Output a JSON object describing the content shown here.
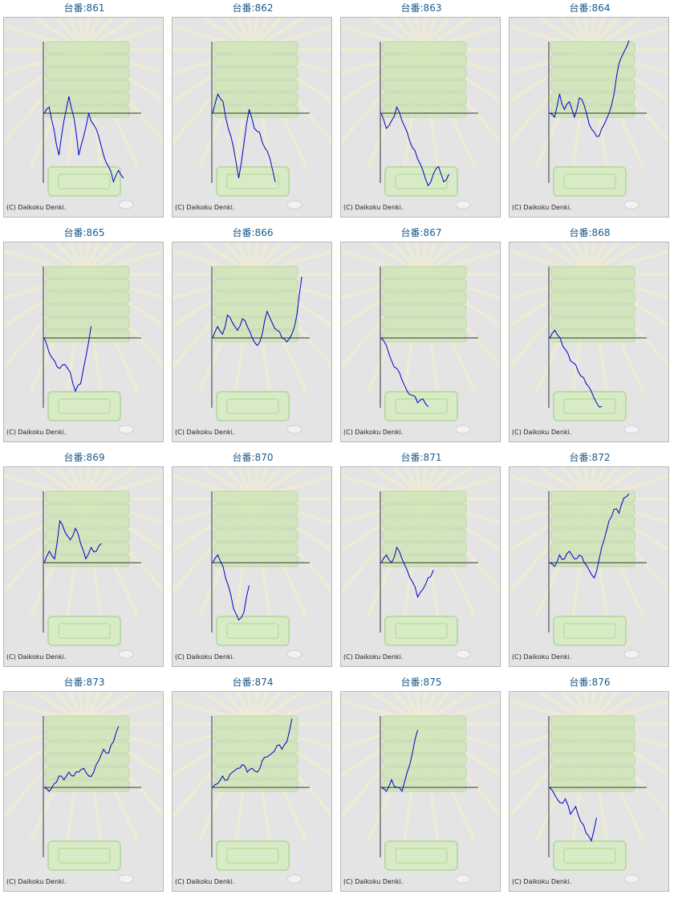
{
  "copyright": "(C) Daikoku Denki.",
  "colors": {
    "title": "#1a5a8a",
    "line": "#0000cc",
    "axis": "#333333",
    "panel_bg": "#e4e4e4"
  },
  "machines": [
    {
      "label": "台番:861",
      "chart_data": {
        "type": "line",
        "values": [
          0,
          8,
          -22,
          -55,
          -10,
          22,
          -5,
          -55,
          -30,
          0,
          -15,
          -30,
          -55,
          -70,
          -90,
          -75,
          -85
        ]
      }
    },
    {
      "label": "台番:862",
      "chart_data": {
        "type": "line",
        "values": [
          0,
          25,
          15,
          -20,
          -45,
          -85,
          -40,
          5,
          -20,
          -25,
          -45,
          -60,
          -90
        ]
      }
    },
    {
      "label": "台番:863",
      "chart_data": {
        "type": "line",
        "values": [
          0,
          -20,
          -10,
          8,
          -10,
          -25,
          -45,
          -60,
          -75,
          -95,
          -80,
          -70,
          -90,
          -80
        ]
      }
    },
    {
      "label": "台番:864",
      "chart_data": {
        "type": "line",
        "values": [
          0,
          -5,
          25,
          5,
          15,
          -5,
          20,
          10,
          -15,
          -25,
          -30,
          -15,
          0,
          25,
          65,
          80,
          95
        ]
      }
    },
    {
      "label": "台番:865",
      "chart_data": {
        "type": "line",
        "values": [
          0,
          -20,
          -30,
          -40,
          -35,
          -45,
          -70,
          -60,
          -25,
          15
        ]
      }
    },
    {
      "label": "台番:866",
      "chart_data": {
        "type": "line",
        "values": [
          0,
          15,
          5,
          30,
          20,
          10,
          25,
          15,
          0,
          -10,
          5,
          35,
          20,
          10,
          0,
          -5,
          5,
          30,
          80
        ]
      }
    },
    {
      "label": "台番:867",
      "chart_data": {
        "type": "line",
        "values": [
          0,
          -10,
          -30,
          -40,
          -55,
          -70,
          -75,
          -85,
          -80,
          -90
        ]
      }
    },
    {
      "label": "台番:868",
      "chart_data": {
        "type": "line",
        "values": [
          0,
          10,
          0,
          -15,
          -30,
          -35,
          -50,
          -60,
          -70,
          -85,
          -90
        ]
      }
    },
    {
      "label": "台番:869",
      "chart_data": {
        "type": "line",
        "values": [
          0,
          15,
          5,
          55,
          40,
          30,
          45,
          25,
          5,
          20,
          15,
          25
        ]
      }
    },
    {
      "label": "台番:870",
      "chart_data": {
        "type": "line",
        "values": [
          0,
          10,
          -5,
          -30,
          -60,
          -75,
          -65,
          -30
        ]
      }
    },
    {
      "label": "台番:871",
      "chart_data": {
        "type": "line",
        "values": [
          0,
          10,
          0,
          20,
          5,
          -10,
          -25,
          -45,
          -35,
          -20,
          -10
        ]
      }
    },
    {
      "label": "台番:872",
      "chart_data": {
        "type": "line",
        "values": [
          0,
          -5,
          10,
          5,
          15,
          5,
          10,
          0,
          -10,
          -20,
          5,
          30,
          55,
          70,
          65,
          85,
          90
        ]
      }
    },
    {
      "label": "台番:873",
      "chart_data": {
        "type": "line",
        "values": [
          0,
          -5,
          5,
          15,
          10,
          20,
          15,
          20,
          25,
          15,
          20,
          35,
          50,
          45,
          60,
          80
        ]
      }
    },
    {
      "label": "台番:874",
      "chart_data": {
        "type": "line",
        "values": [
          0,
          5,
          15,
          10,
          20,
          25,
          30,
          20,
          25,
          20,
          35,
          40,
          45,
          55,
          50,
          60,
          90
        ]
      }
    },
    {
      "label": "台番:875",
      "chart_data": {
        "type": "line",
        "values": [
          0,
          -5,
          10,
          0,
          -5,
          20,
          45,
          75
        ]
      }
    },
    {
      "label": "台番:876",
      "chart_data": {
        "type": "line",
        "values": [
          0,
          -10,
          -20,
          -15,
          -35,
          -25,
          -45,
          -60,
          -70,
          -40
        ]
      }
    }
  ]
}
